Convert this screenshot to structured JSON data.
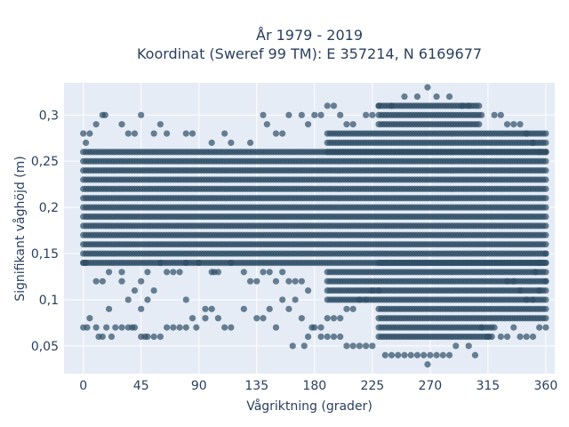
{
  "chart_data": {
    "type": "scatter",
    "title_line1": "År 1979 - 2019",
    "title_line2": "Koordinat (Sweref 99 TM): E 357214, N 6169677",
    "xlabel": "Vågriktning (grader)",
    "ylabel": "Signifikant våghöjd (m)",
    "xlim": [
      -15,
      367
    ],
    "ylim": [
      0.02,
      0.335
    ],
    "x_ticks": [
      0,
      45,
      90,
      135,
      180,
      225,
      270,
      315,
      360
    ],
    "x_tick_labels": [
      "0",
      "45",
      "90",
      "135",
      "180",
      "225",
      "270",
      "315",
      "360"
    ],
    "y_ticks": [
      0.05,
      0.1,
      0.15,
      0.2,
      0.25,
      0.3
    ],
    "y_tick_labels": [
      "0,05",
      "0,1",
      "0,15",
      "0,2",
      "0,25",
      "0,3"
    ],
    "grid": true,
    "marker_color": "#2f4f67",
    "marker_opacity": 0.7,
    "plot_bgcolor": "#e5ecf6",
    "dense_band": {
      "y_min": 0.14,
      "y_max": 0.26,
      "x_min": 0,
      "x_max": 360
    },
    "points": [
      [
        0,
        0.28
      ],
      [
        2,
        0.27
      ],
      [
        5,
        0.28
      ],
      [
        10,
        0.29
      ],
      [
        15,
        0.3
      ],
      [
        17,
        0.3
      ],
      [
        45,
        0.3
      ],
      [
        30,
        0.29
      ],
      [
        35,
        0.28
      ],
      [
        40,
        0.28
      ],
      [
        55,
        0.28
      ],
      [
        60,
        0.29
      ],
      [
        65,
        0.28
      ],
      [
        80,
        0.28
      ],
      [
        85,
        0.28
      ],
      [
        100,
        0.27
      ],
      [
        110,
        0.28
      ],
      [
        115,
        0.27
      ],
      [
        130,
        0.27
      ],
      [
        140,
        0.3
      ],
      [
        143,
        0.29
      ],
      [
        150,
        0.28
      ],
      [
        155,
        0.28
      ],
      [
        160,
        0.3
      ],
      [
        170,
        0.3
      ],
      [
        175,
        0.29
      ],
      [
        180,
        0.3
      ],
      [
        185,
        0.3
      ],
      [
        190,
        0.31
      ],
      [
        195,
        0.31
      ],
      [
        200,
        0.3
      ],
      [
        205,
        0.29
      ],
      [
        210,
        0.29
      ],
      [
        220,
        0.3
      ],
      [
        225,
        0.3
      ],
      [
        230,
        0.31
      ],
      [
        240,
        0.31
      ],
      [
        250,
        0.32
      ],
      [
        260,
        0.32
      ],
      [
        268,
        0.33
      ],
      [
        275,
        0.32
      ],
      [
        285,
        0.32
      ],
      [
        295,
        0.31
      ],
      [
        300,
        0.31
      ],
      [
        310,
        0.3
      ],
      [
        320,
        0.3
      ],
      [
        325,
        0.3
      ],
      [
        330,
        0.29
      ],
      [
        335,
        0.29
      ],
      [
        340,
        0.29
      ],
      [
        345,
        0.28
      ],
      [
        350,
        0.27
      ],
      [
        355,
        0.26
      ],
      [
        360,
        0.26
      ],
      [
        0,
        0.14
      ],
      [
        2,
        0.14
      ],
      [
        10,
        0.12
      ],
      [
        15,
        0.12
      ],
      [
        20,
        0.13
      ],
      [
        30,
        0.13
      ],
      [
        40,
        0.11
      ],
      [
        45,
        0.12
      ],
      [
        50,
        0.13
      ],
      [
        60,
        0.14
      ],
      [
        65,
        0.13
      ],
      [
        70,
        0.13
      ],
      [
        75,
        0.13
      ],
      [
        80,
        0.14
      ],
      [
        90,
        0.14
      ],
      [
        100,
        0.13
      ],
      [
        102,
        0.13
      ],
      [
        105,
        0.13
      ],
      [
        115,
        0.14
      ],
      [
        125,
        0.13
      ],
      [
        130,
        0.12
      ],
      [
        135,
        0.12
      ],
      [
        140,
        0.13
      ],
      [
        145,
        0.13
      ],
      [
        150,
        0.12
      ],
      [
        155,
        0.13
      ],
      [
        160,
        0.12
      ],
      [
        165,
        0.12
      ],
      [
        170,
        0.12
      ],
      [
        175,
        0.11
      ],
      [
        5,
        0.08
      ],
      [
        3,
        0.07
      ],
      [
        0,
        0.07
      ],
      [
        10,
        0.07
      ],
      [
        12,
        0.06
      ],
      [
        15,
        0.06
      ],
      [
        18,
        0.07
      ],
      [
        22,
        0.06
      ],
      [
        25,
        0.07
      ],
      [
        30,
        0.07
      ],
      [
        35,
        0.07
      ],
      [
        38,
        0.07
      ],
      [
        40,
        0.07
      ],
      [
        45,
        0.06
      ],
      [
        48,
        0.06
      ],
      [
        50,
        0.06
      ],
      [
        55,
        0.06
      ],
      [
        60,
        0.06
      ],
      [
        65,
        0.07
      ],
      [
        70,
        0.07
      ],
      [
        75,
        0.07
      ],
      [
        80,
        0.07
      ],
      [
        85,
        0.08
      ],
      [
        88,
        0.07
      ],
      [
        95,
        0.09
      ],
      [
        100,
        0.09
      ],
      [
        105,
        0.08
      ],
      [
        110,
        0.07
      ],
      [
        115,
        0.07
      ],
      [
        125,
        0.09
      ],
      [
        135,
        0.08
      ],
      [
        140,
        0.08
      ],
      [
        150,
        0.07
      ],
      [
        160,
        0.09
      ],
      [
        163,
        0.05
      ],
      [
        170,
        0.08
      ],
      [
        172,
        0.05
      ],
      [
        45,
        0.09
      ],
      [
        50,
        0.1
      ],
      [
        55,
        0.11
      ],
      [
        35,
        0.1
      ],
      [
        20,
        0.09
      ],
      [
        30,
        0.12
      ],
      [
        80,
        0.1
      ],
      [
        95,
        0.08
      ],
      [
        145,
        0.09
      ],
      [
        155,
        0.1
      ],
      [
        165,
        0.1
      ],
      [
        175,
        0.06
      ],
      [
        178,
        0.07
      ],
      [
        235,
        0.04
      ],
      [
        240,
        0.04
      ],
      [
        245,
        0.04
      ],
      [
        250,
        0.04
      ],
      [
        255,
        0.04
      ],
      [
        260,
        0.04
      ],
      [
        265,
        0.04
      ],
      [
        270,
        0.04
      ],
      [
        275,
        0.04
      ],
      [
        280,
        0.04
      ],
      [
        285,
        0.04
      ],
      [
        268,
        0.03
      ],
      [
        305,
        0.04
      ],
      [
        215,
        0.05
      ],
      [
        220,
        0.05
      ],
      [
        225,
        0.05
      ],
      [
        290,
        0.05
      ],
      [
        300,
        0.05
      ],
      [
        340,
        0.06
      ],
      [
        345,
        0.06
      ],
      [
        350,
        0.06
      ],
      [
        355,
        0.07
      ],
      [
        360,
        0.07
      ],
      [
        335,
        0.07
      ],
      [
        330,
        0.06
      ],
      [
        325,
        0.06
      ],
      [
        320,
        0.07
      ],
      [
        315,
        0.06
      ],
      [
        310,
        0.07
      ],
      [
        185,
        0.06
      ],
      [
        190,
        0.06
      ],
      [
        195,
        0.06
      ],
      [
        200,
        0.06
      ],
      [
        205,
        0.05
      ],
      [
        210,
        0.05
      ],
      [
        180,
        0.07
      ],
      [
        185,
        0.07
      ],
      [
        190,
        0.08
      ],
      [
        195,
        0.08
      ],
      [
        200,
        0.08
      ],
      [
        205,
        0.09
      ],
      [
        210,
        0.09
      ],
      [
        215,
        0.1
      ],
      [
        220,
        0.1
      ],
      [
        225,
        0.11
      ],
      [
        230,
        0.11
      ],
      [
        345,
        0.1
      ],
      [
        350,
        0.1
      ],
      [
        355,
        0.11
      ],
      [
        360,
        0.12
      ],
      [
        340,
        0.11
      ],
      [
        335,
        0.12
      ],
      [
        330,
        0.12
      ],
      [
        355,
        0.14
      ],
      [
        360,
        0.15
      ],
      [
        352,
        0.13
      ]
    ]
  }
}
